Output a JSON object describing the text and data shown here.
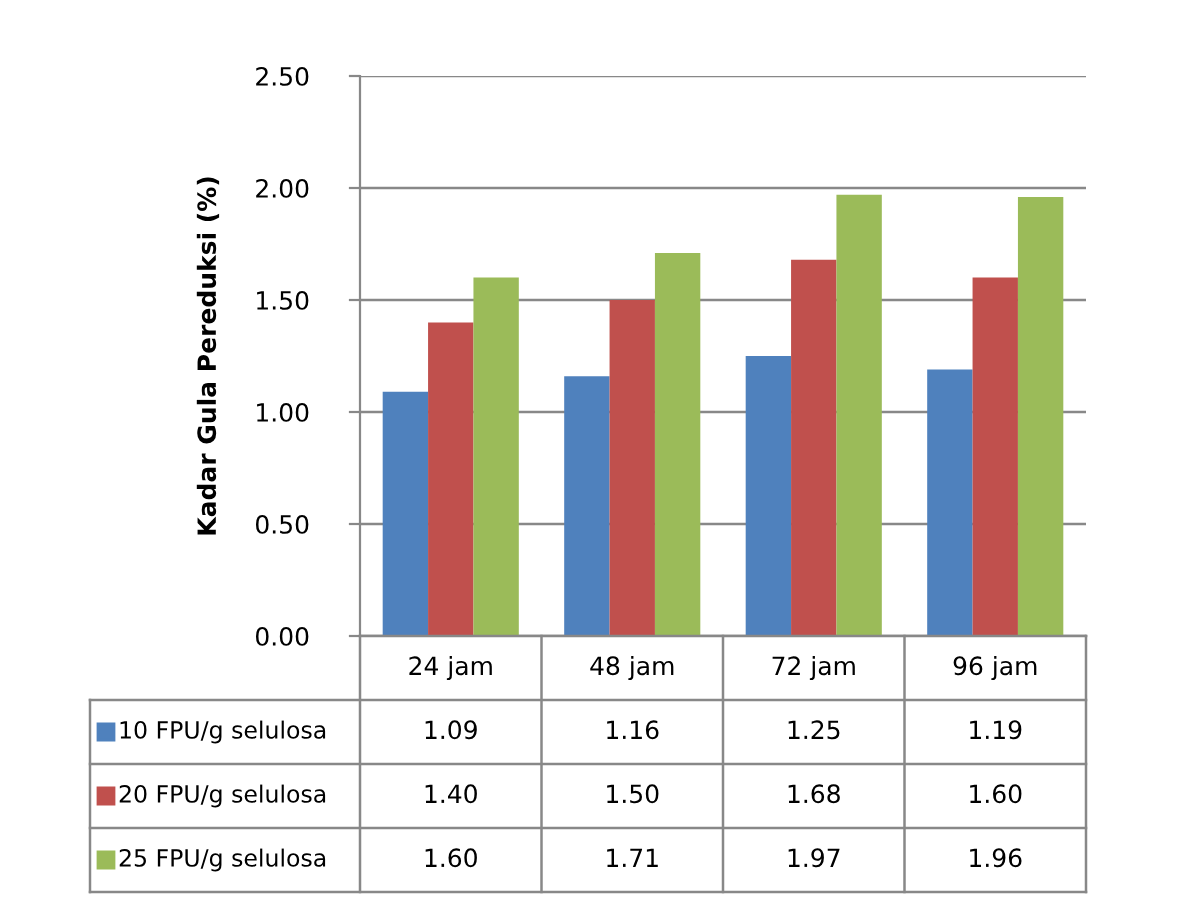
{
  "chart_data": {
    "type": "bar",
    "ylabel": "Kadar Gula Pereduksi (%)",
    "categories": [
      "24 jam",
      "48 jam",
      "72 jam",
      "96 jam"
    ],
    "series": [
      {
        "name": "10 FPU/g selulosa",
        "color": "#4f81bd",
        "values": [
          1.09,
          1.16,
          1.25,
          1.19
        ],
        "value_labels": [
          "1.09",
          "1.16",
          "1.25",
          "1.19"
        ]
      },
      {
        "name": "20 FPU/g selulosa",
        "color": "#c0504d",
        "values": [
          1.4,
          1.5,
          1.68,
          1.6
        ],
        "value_labels": [
          "1.40",
          "1.50",
          "1.68",
          "1.60"
        ]
      },
      {
        "name": "25 FPU/g selulosa",
        "color": "#9bbb59",
        "values": [
          1.6,
          1.71,
          1.97,
          1.96
        ],
        "value_labels": [
          "1.60",
          "1.71",
          "1.97",
          "1.96"
        ]
      }
    ],
    "ylim": [
      0,
      2.5
    ],
    "yticks": [
      {
        "value": 0,
        "label": "0.00"
      },
      {
        "value": 0.5,
        "label": "0.50"
      },
      {
        "value": 1,
        "label": "1.00"
      },
      {
        "value": 1.5,
        "label": "1.50"
      },
      {
        "value": 2,
        "label": "2.00"
      },
      {
        "value": 2.5,
        "label": "2.50"
      }
    ],
    "grid": "y",
    "legend": "bottom"
  }
}
